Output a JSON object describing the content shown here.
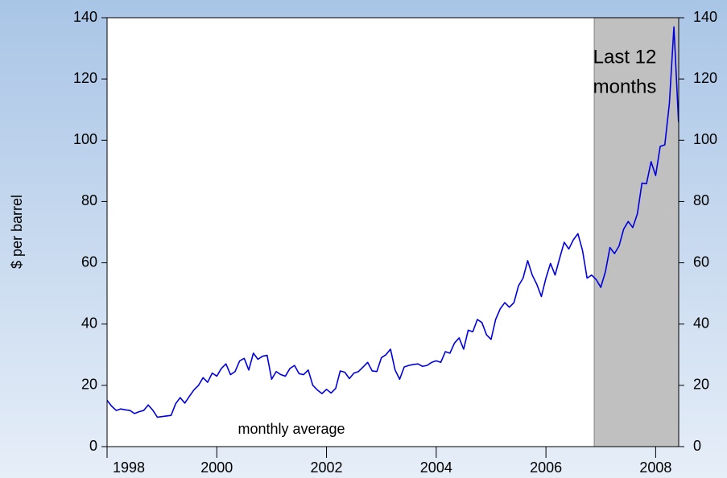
{
  "chart_data": {
    "type": "line",
    "y_label": "$ per barrel",
    "annotation": "monthly average",
    "highlight": {
      "start": 2006.88,
      "end": 2008.42,
      "label_lines": [
        "Last 12",
        "months"
      ],
      "color": "#c0c0c0"
    },
    "x": [
      1998,
      1998.083,
      1998.167,
      1998.25,
      1998.333,
      1998.417,
      1998.5,
      1998.583,
      1998.667,
      1998.75,
      1998.833,
      1998.917,
      1999,
      1999.083,
      1999.167,
      1999.25,
      1999.333,
      1999.417,
      1999.5,
      1999.583,
      1999.667,
      1999.75,
      1999.833,
      1999.917,
      2000,
      2000.083,
      2000.167,
      2000.25,
      2000.333,
      2000.417,
      2000.5,
      2000.583,
      2000.667,
      2000.75,
      2000.833,
      2000.917,
      2001,
      2001.083,
      2001.167,
      2001.25,
      2001.333,
      2001.417,
      2001.5,
      2001.583,
      2001.667,
      2001.75,
      2001.833,
      2001.917,
      2002,
      2002.083,
      2002.167,
      2002.25,
      2002.333,
      2002.417,
      2002.5,
      2002.583,
      2002.667,
      2002.75,
      2002.833,
      2002.917,
      2003,
      2003.083,
      2003.167,
      2003.25,
      2003.333,
      2003.417,
      2003.5,
      2003.583,
      2003.667,
      2003.75,
      2003.833,
      2003.917,
      2004,
      2004.083,
      2004.167,
      2004.25,
      2004.333,
      2004.417,
      2004.5,
      2004.583,
      2004.667,
      2004.75,
      2004.833,
      2004.917,
      2005,
      2005.083,
      2005.167,
      2005.25,
      2005.333,
      2005.417,
      2005.5,
      2005.583,
      2005.667,
      2005.75,
      2005.833,
      2005.917,
      2006,
      2006.083,
      2006.167,
      2006.25,
      2006.333,
      2006.417,
      2006.5,
      2006.583,
      2006.667,
      2006.75,
      2006.833,
      2006.917,
      2007,
      2007.083,
      2007.167,
      2007.25,
      2007.333,
      2007.417,
      2007.5,
      2007.583,
      2007.667,
      2007.75,
      2007.833,
      2007.917,
      2008,
      2008.083,
      2008.167,
      2008.25,
      2008.333,
      2008.417
    ],
    "series": [
      {
        "name": "monthly average",
        "color": "#0000e0",
        "values": [
          15.1,
          13.2,
          11.8,
          12.3,
          12.0,
          11.8,
          10.8,
          11.4,
          11.8,
          13.6,
          11.9,
          9.6,
          9.8,
          10.0,
          10.2,
          14.0,
          16.0,
          14.2,
          16.4,
          18.5,
          20.0,
          22.5,
          21.0,
          24.0,
          23.0,
          25.5,
          27.0,
          23.5,
          24.5,
          28.0,
          28.8,
          25.0,
          30.5,
          28.5,
          29.5,
          29.8,
          22.0,
          24.5,
          23.5,
          23.0,
          25.5,
          26.5,
          23.8,
          23.5,
          25.0,
          20.0,
          18.5,
          17.3,
          18.7,
          17.5,
          19.0,
          24.7,
          24.3,
          22.2,
          24.0,
          24.5,
          26.0,
          27.5,
          24.7,
          24.5,
          29.0,
          30.0,
          31.8,
          25.0,
          22.0,
          26.0,
          26.5,
          26.8,
          27.0,
          26.2,
          26.5,
          27.5,
          28.0,
          27.5,
          31.0,
          30.5,
          33.8,
          35.5,
          31.8,
          38.0,
          37.5,
          41.5,
          40.5,
          36.5,
          35.0,
          41.5,
          45.0,
          47.0,
          45.5,
          47.0,
          52.5,
          55.0,
          60.7,
          56.0,
          53.0,
          49.0,
          55.0,
          59.8,
          56.0,
          61.5,
          66.7,
          64.5,
          67.5,
          69.5,
          64.0,
          55.0,
          56.0,
          54.5,
          52.0,
          57.0,
          65.0,
          63.0,
          65.5,
          71.0,
          73.5,
          71.5,
          76.0,
          86.0,
          85.8,
          93.0,
          88.5,
          98.0,
          98.5,
          112.0,
          137.0,
          106.0
        ]
      }
    ],
    "xlim": [
      1998,
      2008.42
    ],
    "xticks": [
      1998,
      2000,
      2002,
      2004,
      2006,
      2008
    ],
    "ylim": [
      0,
      140
    ],
    "yticks": [
      0,
      20,
      40,
      60,
      80,
      100,
      120,
      140
    ],
    "y2lim": [
      0,
      140
    ],
    "y2ticks": [
      0,
      20,
      40,
      60,
      80,
      100,
      120,
      140
    ]
  }
}
